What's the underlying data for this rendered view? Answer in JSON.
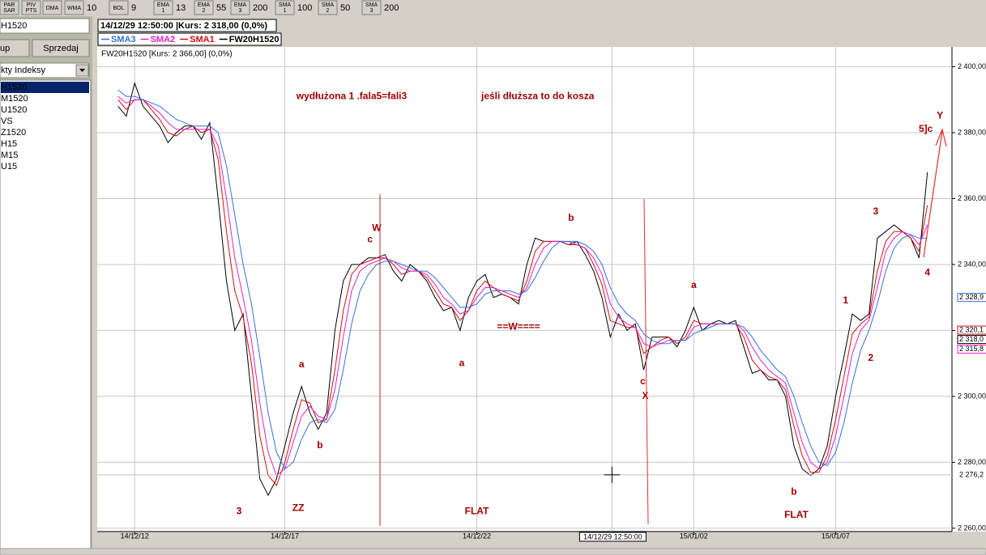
{
  "toolbar": {
    "buttons": [
      {
        "label": [
          "PAR",
          "SAR"
        ]
      },
      {
        "label": [
          "PIV",
          "PTS"
        ]
      },
      {
        "label": [
          "DMA"
        ]
      },
      {
        "label": [
          "WMA"
        ],
        "value": 10
      },
      {
        "label": [
          "BOL"
        ],
        "value": 9
      },
      {
        "label": [
          "EMA",
          "1"
        ],
        "value": 13
      },
      {
        "label": [
          "EMA",
          "2"
        ],
        "value": 55
      },
      {
        "label": [
          "EMA",
          "3"
        ],
        "value": 200
      },
      {
        "label": [
          "SMA",
          "1"
        ],
        "value": 100
      },
      {
        "label": [
          "SMA",
          "2"
        ],
        "value": 50
      },
      {
        "label": [
          "SMA",
          "3"
        ],
        "value": 200
      }
    ]
  },
  "sidebar": {
    "instrument": "H1520",
    "buttons": [
      "up",
      "Sprzedaj"
    ],
    "dropdown": "kty Indeksy",
    "list": [
      "H1520",
      "M1520",
      "U1520",
      "VS",
      "Z1520",
      "H15",
      "M15",
      "U15"
    ]
  },
  "header": {
    "status": "14/12/29 12:50:00 |Kurs: 2 318,00 (0,0%)"
  },
  "chart_data": {
    "type": "line",
    "info_label": "FW20H1520 [Kurs: 2 366,00] (0,0%)",
    "categories": [
      null,
      null,
      null,
      null,
      "14/12/12",
      null,
      null,
      null,
      null,
      null,
      null,
      null,
      null,
      null,
      null,
      null,
      null,
      null,
      null,
      null,
      null,
      null,
      "14/12/17",
      null,
      null,
      null,
      null,
      null,
      null,
      null,
      null,
      null,
      null,
      null,
      null,
      null,
      null,
      null,
      null,
      null,
      null,
      null,
      null,
      null,
      null,
      "14/12/22",
      null,
      null,
      null,
      null,
      null,
      null,
      null,
      null,
      null,
      null,
      null,
      null,
      null,
      null,
      null,
      null,
      null,
      null,
      null,
      null,
      null,
      null,
      null,
      null,
      null,
      "15/01/02",
      null,
      null,
      null,
      null,
      null,
      null,
      null,
      null,
      null,
      null,
      null,
      null,
      null,
      null,
      null,
      null,
      "15/01/07",
      null,
      null,
      null,
      null,
      null,
      null,
      null,
      null,
      null,
      null,
      null
    ],
    "ylim": [
      2259,
      2406
    ],
    "yticks": [
      {
        "value": 2260,
        "label": "2 260,00"
      },
      {
        "value": 2280,
        "label": "2 280,00"
      },
      {
        "value": 2300,
        "label": "2 300,00"
      },
      {
        "value": 2320,
        "label": "2 320,00"
      },
      {
        "value": 2340,
        "label": "2 340,00"
      },
      {
        "value": 2360,
        "label": "2 360,00"
      },
      {
        "value": 2380,
        "label": "2 380,00"
      },
      {
        "value": 2400,
        "label": "2 400,00"
      }
    ],
    "grid": true,
    "series": [
      {
        "name": "SMA3",
        "color": "#3a6fd8",
        "values": [
          null,
          null,
          2393,
          2391,
          2391,
          2390,
          2389,
          2388,
          2386,
          2384,
          2383,
          2382,
          2382,
          2382,
          2380,
          2370,
          2355,
          2340,
          2328,
          2312,
          2295,
          2283,
          2278,
          2280,
          2287,
          2292,
          2293,
          2292,
          2296,
          2308,
          2322,
          2332,
          2337,
          2340,
          2341,
          2341,
          2340,
          2339,
          2338,
          2338,
          2336,
          2333,
          2330,
          2327,
          2327,
          2328,
          2331,
          2332,
          2332,
          2332,
          2331,
          2332,
          2336,
          2341,
          2345,
          2347,
          2347,
          2347,
          2346,
          2344,
          2340,
          2333,
          2328,
          2325,
          2323,
          2319,
          2317,
          2316,
          2316,
          2317,
          2317,
          2319,
          2320,
          2321,
          2322,
          2322,
          2322,
          2321,
          2318,
          2314,
          2311,
          2308,
          2306,
          2300,
          2292,
          2285,
          2280,
          2279,
          2283,
          2292,
          2304,
          2314,
          2320,
          2328,
          2338,
          2345,
          2348,
          2349,
          2348,
          2348
        ]
      },
      {
        "name": "SMA2",
        "color": "#e020c8",
        "values": [
          null,
          null,
          2391,
          2389,
          2390,
          2390,
          2388,
          2386,
          2383,
          2381,
          2381,
          2381,
          2381,
          2381,
          2376,
          2360,
          2342,
          2330,
          2317,
          2298,
          2283,
          2276,
          2278,
          2286,
          2294,
          2297,
          2294,
          2293,
          2302,
          2318,
          2332,
          2338,
          2340,
          2341,
          2342,
          2341,
          2339,
          2338,
          2338,
          2337,
          2334,
          2330,
          2328,
          2325,
          2326,
          2330,
          2333,
          2333,
          2332,
          2331,
          2330,
          2333,
          2340,
          2345,
          2347,
          2347,
          2347,
          2346,
          2345,
          2342,
          2337,
          2328,
          2324,
          2322,
          2321,
          2316,
          2315,
          2316,
          2317,
          2317,
          2317,
          2321,
          2322,
          2322,
          2322,
          2322,
          2322,
          2320,
          2315,
          2311,
          2308,
          2306,
          2304,
          2295,
          2286,
          2280,
          2278,
          2280,
          2288,
          2300,
          2313,
          2320,
          2323,
          2333,
          2344,
          2348,
          2350,
          2349,
          2346,
          2352
        ]
      },
      {
        "name": "SMA1",
        "color": "#d01010",
        "values": [
          null,
          null,
          2390,
          2387,
          2390,
          2390,
          2387,
          2384,
          2380,
          2379,
          2381,
          2382,
          2380,
          2381,
          2372,
          2350,
          2332,
          2324,
          2310,
          2288,
          2276,
          2273,
          2280,
          2290,
          2299,
          2298,
          2292,
          2293,
          2308,
          2326,
          2337,
          2340,
          2341,
          2342,
          2342,
          2340,
          2337,
          2338,
          2338,
          2336,
          2332,
          2328,
          2327,
          2323,
          2326,
          2332,
          2335,
          2333,
          2331,
          2330,
          2329,
          2335,
          2344,
          2347,
          2347,
          2347,
          2346,
          2346,
          2345,
          2340,
          2334,
          2323,
          2322,
          2321,
          2321,
          2313,
          2315,
          2317,
          2318,
          2316,
          2318,
          2323,
          2322,
          2322,
          2322,
          2322,
          2322,
          2318,
          2311,
          2308,
          2306,
          2305,
          2302,
          2291,
          2282,
          2277,
          2277,
          2282,
          2293,
          2306,
          2319,
          2322,
          2324,
          2338,
          2347,
          2350,
          2350,
          2348,
          2344,
          2358
        ]
      },
      {
        "name": "FW20H1520",
        "color": "#000000",
        "values": [
          null,
          null,
          2388,
          2385,
          2395,
          2388,
          2385,
          2382,
          2377,
          2380,
          2382,
          2382,
          2378,
          2383,
          2360,
          2335,
          2320,
          2325,
          2300,
          2275,
          2270,
          2275,
          2285,
          2295,
          2303,
          2295,
          2290,
          2295,
          2320,
          2335,
          2340,
          2340,
          2342,
          2342,
          2343,
          2338,
          2335,
          2340,
          2338,
          2335,
          2330,
          2326,
          2327,
          2320,
          2330,
          2335,
          2337,
          2330,
          2331,
          2330,
          2328,
          2340,
          2348,
          2347,
          2347,
          2347,
          2346,
          2347,
          2343,
          2338,
          2330,
          2318,
          2325,
          2320,
          2322,
          2308,
          2318,
          2318,
          2318,
          2315,
          2320,
          2327,
          2320,
          2322,
          2323,
          2322,
          2323,
          2315,
          2307,
          2308,
          2305,
          2305,
          2300,
          2285,
          2278,
          2276,
          2278,
          2285,
          2300,
          2312,
          2325,
          2323,
          2325,
          2348,
          2350,
          2352,
          2350,
          2348,
          2342,
          2368
        ]
      }
    ],
    "annotations": [
      {
        "text": "wydłużona  1 .fala5=fali3",
        "x": 30,
        "y": 2391
      },
      {
        "text": "jeśli dłuższa to do kosza",
        "x": 52.3,
        "y": 2391
      },
      {
        "text": "W",
        "x": 33,
        "y": 2351
      },
      {
        "text": "c",
        "x": 32.2,
        "y": 2347.5
      },
      {
        "text": "a",
        "x": 24,
        "y": 2309.6
      },
      {
        "text": "b",
        "x": 26.2,
        "y": 2285
      },
      {
        "text": "3",
        "x": 16.5,
        "y": 2265
      },
      {
        "text": "ZZ",
        "x": 23.6,
        "y": 2266
      },
      {
        "text": "FLAT",
        "x": 45,
        "y": 2265
      },
      {
        "text": "==W====",
        "x": 50,
        "y": 2321
      },
      {
        "text": "a",
        "x": 43.2,
        "y": 2310
      },
      {
        "text": "b",
        "x": 56.3,
        "y": 2354
      },
      {
        "text": "c",
        "x": 64.9,
        "y": 2304.4
      },
      {
        "text": "X",
        "x": 65.2,
        "y": 2300
      },
      {
        "text": "a",
        "x": 71,
        "y": 2333.6
      },
      {
        "text": "b",
        "x": 83,
        "y": 2271
      },
      {
        "text": "FLAT",
        "x": 83.3,
        "y": 2264
      },
      {
        "text": "1",
        "x": 89.2,
        "y": 2329
      },
      {
        "text": "2",
        "x": 92.2,
        "y": 2311.5
      },
      {
        "text": "3",
        "x": 92.8,
        "y": 2356
      },
      {
        "text": "4",
        "x": 99,
        "y": 2337.5
      },
      {
        "text": "5]c",
        "x": 98.8,
        "y": 2381
      },
      {
        "text": "Y",
        "x": 100.5,
        "y": 2385
      }
    ],
    "price_tags": [
      {
        "value": 2328.9,
        "label": "2 328,9",
        "color": "#3a6fd8"
      },
      {
        "value": 2320.1,
        "label": "2 320,1",
        "color": "#d01010"
      },
      {
        "value": 2318.0,
        "label": "2 318,0",
        "color": "#000000"
      },
      {
        "value": 2315.8,
        "label": "2 315,8",
        "color": "#e020c8"
      }
    ],
    "cursor": {
      "x": 61.2,
      "x_label": "14/12/29 12:50:00",
      "y_label": {
        "value": 2276.2,
        "label": "2 276,2"
      }
    }
  }
}
